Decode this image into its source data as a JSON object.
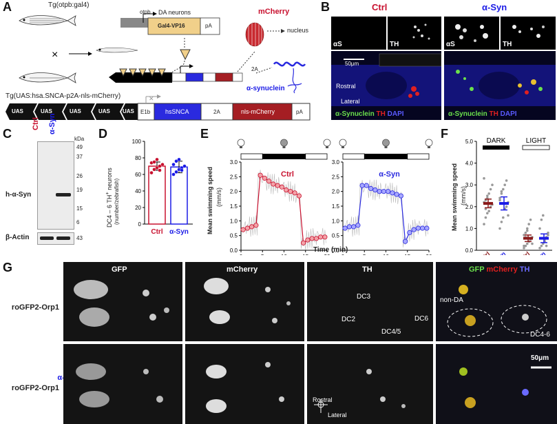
{
  "panels": {
    "A": "A",
    "B": "B",
    "C": "C",
    "D": "D",
    "E": "E",
    "F": "F",
    "G": "G"
  },
  "panelA": {
    "tg1": "Tg(otpb:gal4)",
    "otpb": "otpb",
    "da_neurons": "DA neurons",
    "gal4": "Gal4-VP16",
    "pa": "pA",
    "mcherry": "mCherry",
    "nucleus": "nucleus",
    "twoA": "2A",
    "asyn": "α-synuclein",
    "tg2": "Tg(UAS:hsa.SNCA-p2A-nls-mCherry)",
    "uas": [
      "UAS",
      "UAS",
      "UAS",
      "UAS",
      "UAS"
    ],
    "e1b": "E1b",
    "hssnca": "hsSNCA",
    "twoA2": "2A",
    "nls": "nls-mCherry",
    "pa2": "pA",
    "cross": "×"
  },
  "panelB": {
    "ctrl": "Ctrl",
    "asyn": "α-Syn",
    "as_label": "αS",
    "th_label": "TH",
    "scale": "50μm",
    "rostral": "Rostral",
    "lateral": "Lateral",
    "legend_asyn": "α-Synuclein",
    "legend_th": "TH",
    "legend_dapi": "DAPI"
  },
  "panelC": {
    "ctrl": "Ctrl",
    "asyn": "α-Syn",
    "kda": "kDa",
    "markers": [
      "49",
      "37",
      "26",
      "19",
      "15",
      "6"
    ],
    "actin_marker": "43",
    "band1": "h-α-Syn",
    "band2": "β-Actin"
  },
  "panelD": {
    "ylabel1": "DC4 – 6 TH",
    "ylabel_sup": "+",
    "ylabel2": " neurons",
    "ylabel3": "(number/zebrafish)",
    "yticks": [
      "0",
      "20",
      "40",
      "60",
      "80",
      "100"
    ],
    "categories": [
      "Ctrl",
      "α-Syn"
    ]
  },
  "panelE": {
    "ylabel1": "Mean swimming speed",
    "ylabel2": "(mm/s)",
    "xlabel": "Time (min)",
    "ctrl": "Ctrl",
    "asyn": "α-Syn",
    "yticks": [
      "0.0",
      "0.5",
      "1.0",
      "1.5",
      "2.0",
      "2.5",
      "3.0"
    ],
    "xticks": [
      "0",
      "5",
      "10",
      "15",
      "20"
    ]
  },
  "panelF": {
    "ylabel1": "Mean swimming speed",
    "ylabel2": "(mm/s)",
    "dark": "DARK",
    "light": "LIGHT",
    "yticks": [
      "0.0",
      "1.0",
      "2.0",
      "3.0",
      "4.0",
      "5.0"
    ],
    "categories": [
      "Ctrl",
      "α-Syn",
      "Ctrl",
      "α-Syn"
    ]
  },
  "panelG": {
    "gfp": "GFP",
    "mcherry": "mCherry",
    "th": "TH",
    "merge_gfp": "GFP",
    "merge_mch": "mCherry",
    "merge_th": "TH",
    "ctrl": "Ctrl",
    "asyn": "α-Syn",
    "reporter": "roGFP2-Orp1",
    "dc3": "DC3",
    "dc2": "DC2",
    "dc45": "DC4/5",
    "dc6": "DC6",
    "nonda": "non-DA",
    "dc46": "DC4-6",
    "scale": "50μm",
    "rostral": "Rostral",
    "lateral": "Lateral"
  },
  "chart_data": [
    {
      "type": "bar",
      "panel": "D",
      "categories": [
        "Ctrl",
        "α-Syn"
      ],
      "values": [
        70,
        69
      ],
      "errors": [
        5,
        7
      ],
      "points": [
        [
          62,
          66,
          68,
          70,
          72,
          74,
          75,
          78,
          65
        ],
        [
          60,
          63,
          66,
          68,
          70,
          72,
          76,
          78,
          65
        ]
      ],
      "ylim": [
        0,
        100
      ],
      "colors": {
        "Ctrl": "#c8102e",
        "α-Syn": "#1a1ae6"
      }
    },
    {
      "type": "line",
      "panel": "E",
      "series": [
        {
          "name": "Ctrl",
          "x": [
            1,
            2,
            3,
            4,
            5,
            6,
            7,
            8,
            9,
            10,
            11,
            12,
            13,
            14,
            15,
            16,
            17,
            18,
            19,
            20
          ],
          "values": [
            0.7,
            0.75,
            0.8,
            0.85,
            2.55,
            2.45,
            2.35,
            2.25,
            2.2,
            2.15,
            2.05,
            2.0,
            1.95,
            1.85,
            0.25,
            0.35,
            0.4,
            0.4,
            0.45,
            0.45
          ]
        },
        {
          "name": "α-Syn",
          "x": [
            1,
            2,
            3,
            4,
            5,
            6,
            7,
            8,
            9,
            10,
            11,
            12,
            13,
            14,
            15,
            16,
            17,
            18,
            19,
            20
          ],
          "values": [
            0.75,
            0.8,
            0.8,
            0.85,
            2.2,
            2.2,
            2.1,
            2.05,
            2.0,
            2.0,
            2.0,
            1.95,
            1.9,
            1.85,
            0.3,
            0.6,
            0.7,
            0.75,
            0.75,
            0.75
          ]
        }
      ],
      "xlim": [
        0,
        20
      ],
      "ylim": [
        0,
        3
      ],
      "dark_interval": [
        5,
        15
      ]
    },
    {
      "type": "scatter",
      "panel": "F",
      "categories": [
        "Ctrl DARK",
        "α-Syn DARK",
        "Ctrl LIGHT",
        "α-Syn LIGHT"
      ],
      "means": [
        2.15,
        2.15,
        0.55,
        0.55
      ],
      "sem": [
        0.2,
        0.3,
        0.15,
        0.2
      ],
      "points": [
        [
          1.2,
          1.5,
          1.7,
          1.8,
          2.0,
          2.1,
          2.2,
          2.3,
          2.4,
          2.6,
          2.8,
          3.0,
          3.3,
          1.9,
          2.5
        ],
        [
          1.0,
          1.3,
          1.5,
          1.9,
          2.0,
          2.2,
          2.4,
          2.6,
          2.8,
          3.0,
          3.2,
          1.6,
          2.3,
          2.7
        ],
        [
          0.1,
          0.2,
          0.3,
          0.4,
          0.5,
          0.6,
          0.7,
          0.8,
          1.0,
          1.2,
          1.4,
          0.3,
          0.2,
          0.6,
          0.9
        ],
        [
          0.1,
          0.2,
          0.3,
          0.4,
          0.6,
          0.8,
          1.0,
          1.4,
          1.6,
          0.5,
          0.2,
          0.7
        ]
      ],
      "ylim": [
        0,
        5
      ]
    }
  ]
}
